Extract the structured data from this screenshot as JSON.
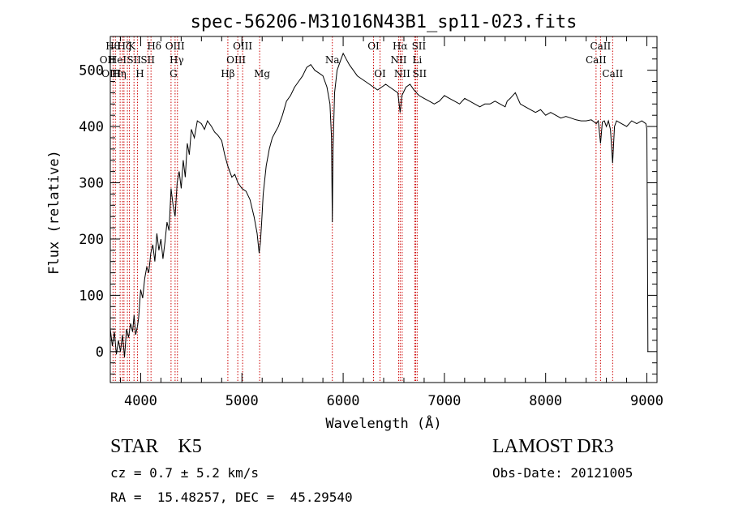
{
  "chart_data": {
    "type": "line",
    "title": "spec-56206-M31016N43B1_sp11-023.fits",
    "xlabel": "Wavelength (Å)",
    "ylabel": "Flux (relative)",
    "xlim": [
      3700,
      9100
    ],
    "ylim": [
      -55,
      560
    ],
    "xticks": [
      4000,
      5000,
      6000,
      7000,
      8000,
      9000
    ],
    "yticks": [
      0,
      100,
      200,
      300,
      400,
      500
    ],
    "x_minor_step": 200,
    "y_minor_step": 20,
    "line_color": "#000000",
    "marker_color": "#cc0000",
    "series": [
      {
        "name": "flux",
        "x": [
          3700,
          3720,
          3740,
          3760,
          3780,
          3800,
          3820,
          3840,
          3860,
          3880,
          3900,
          3920,
          3935,
          3950,
          3968,
          3980,
          4000,
          4020,
          4040,
          4060,
          4080,
          4100,
          4120,
          4140,
          4160,
          4180,
          4200,
          4220,
          4240,
          4260,
          4280,
          4300,
          4320,
          4340,
          4360,
          4380,
          4400,
          4420,
          4440,
          4460,
          4480,
          4500,
          4530,
          4560,
          4600,
          4630,
          4660,
          4700,
          4730,
          4760,
          4800,
          4830,
          4860,
          4900,
          4930,
          4960,
          5000,
          5040,
          5080,
          5120,
          5150,
          5170,
          5183,
          5195,
          5210,
          5240,
          5270,
          5300,
          5330,
          5360,
          5400,
          5440,
          5480,
          5520,
          5560,
          5600,
          5640,
          5680,
          5720,
          5760,
          5800,
          5840,
          5870,
          5885,
          5893,
          5900,
          5915,
          5940,
          5970,
          6000,
          6030,
          6060,
          6100,
          6140,
          6180,
          6220,
          6260,
          6300,
          6340,
          6380,
          6420,
          6460,
          6500,
          6540,
          6563,
          6580,
          6620,
          6660,
          6700,
          6750,
          6800,
          6850,
          6900,
          6950,
          7000,
          7050,
          7100,
          7150,
          7200,
          7250,
          7300,
          7350,
          7400,
          7450,
          7500,
          7550,
          7600,
          7620,
          7650,
          7700,
          7750,
          7800,
          7850,
          7900,
          7950,
          8000,
          8050,
          8100,
          8150,
          8200,
          8250,
          8300,
          8350,
          8400,
          8450,
          8480,
          8500,
          8520,
          8542,
          8560,
          8580,
          8600,
          8620,
          8640,
          8662,
          8680,
          8700,
          8750,
          8800,
          8850,
          8900,
          8950,
          8990,
          9000,
          9005,
          9010
        ],
        "y": [
          40,
          10,
          35,
          -5,
          20,
          0,
          30,
          -10,
          40,
          25,
          50,
          35,
          65,
          30,
          45,
          60,
          110,
          95,
          130,
          150,
          140,
          175,
          190,
          160,
          210,
          180,
          200,
          165,
          195,
          230,
          215,
          290,
          260,
          240,
          300,
          320,
          290,
          340,
          310,
          370,
          350,
          395,
          380,
          410,
          405,
          395,
          410,
          400,
          390,
          385,
          375,
          350,
          330,
          310,
          315,
          300,
          290,
          285,
          270,
          240,
          210,
          175,
          195,
          230,
          280,
          330,
          360,
          380,
          390,
          400,
          420,
          445,
          455,
          470,
          480,
          490,
          505,
          510,
          500,
          495,
          490,
          470,
          440,
          380,
          230,
          360,
          460,
          500,
          515,
          530,
          520,
          510,
          500,
          490,
          485,
          480,
          475,
          470,
          465,
          470,
          475,
          470,
          465,
          460,
          425,
          455,
          470,
          475,
          465,
          455,
          450,
          445,
          440,
          445,
          455,
          450,
          445,
          440,
          450,
          445,
          440,
          435,
          440,
          440,
          445,
          440,
          435,
          445,
          450,
          460,
          440,
          435,
          430,
          425,
          430,
          420,
          425,
          420,
          415,
          418,
          415,
          412,
          410,
          410,
          412,
          408,
          405,
          410,
          370,
          408,
          410,
          400,
          410,
          395,
          335,
          400,
          410,
          405,
          400,
          410,
          405,
          410,
          405,
          395,
          230,
          0
        ]
      }
    ],
    "line_markers": [
      {
        "x": 3727,
        "label": "OII",
        "row": 1,
        "dx": -7
      },
      {
        "x": 3750,
        "label": "OIII",
        "row": 2,
        "dx": -5
      },
      {
        "x": 3797,
        "label": "Hθ",
        "row": 0,
        "dx": -9
      },
      {
        "x": 3820,
        "label": "HeI",
        "row": 1,
        "dx": -6
      },
      {
        "x": 3835,
        "label": "Hη",
        "row": 2,
        "dx": -6
      },
      {
        "x": 3869,
        "label": "Hζ",
        "row": 0,
        "dx": -4
      },
      {
        "x": 3889,
        "label": "K",
        "row": 0,
        "dx": 3
      },
      {
        "x": 3934,
        "label": "SII",
        "row": 1,
        "dx": 0
      },
      {
        "x": 3968,
        "label": "H",
        "row": 2,
        "dx": 3
      },
      {
        "x": 4070,
        "label": "SII",
        "row": 1,
        "dx": 0
      },
      {
        "x": 4102,
        "label": "Hδ",
        "row": 0,
        "dx": 4
      },
      {
        "x": 4300,
        "label": "G",
        "row": 2,
        "dx": 3
      },
      {
        "x": 4340,
        "label": "Hγ",
        "row": 1,
        "dx": 2
      },
      {
        "x": 4363,
        "label": "OIII",
        "row": 0,
        "dx": -3
      },
      {
        "x": 4861,
        "label": "Hβ",
        "row": 2,
        "dx": 0
      },
      {
        "x": 4959,
        "label": "OIII",
        "row": 1,
        "dx": -2
      },
      {
        "x": 5007,
        "label": "OIII",
        "row": 0,
        "dx": 0
      },
      {
        "x": 5175,
        "label": "Mg",
        "row": 2,
        "dx": 3
      },
      {
        "x": 5893,
        "label": "Na",
        "row": 1,
        "dx": 0
      },
      {
        "x": 6300,
        "label": "OI",
        "row": 0,
        "dx": 0
      },
      {
        "x": 6364,
        "label": "OI",
        "row": 2,
        "dx": 0
      },
      {
        "x": 6548,
        "label": "NII",
        "row": 1,
        "dx": 0
      },
      {
        "x": 6563,
        "label": "Hα",
        "row": 0,
        "dx": 0
      },
      {
        "x": 6583,
        "label": "NII",
        "row": 2,
        "dx": 0
      },
      {
        "x": 6707,
        "label": "Li",
        "row": 1,
        "dx": 3
      },
      {
        "x": 6716,
        "label": "SII",
        "row": 0,
        "dx": 4
      },
      {
        "x": 6731,
        "label": "SII",
        "row": 2,
        "dx": 3
      },
      {
        "x": 8498,
        "label": "CaII",
        "row": 1,
        "dx": 0
      },
      {
        "x": 8542,
        "label": "CaII",
        "row": 0,
        "dx": 0
      },
      {
        "x": 8662,
        "label": "CaII",
        "row": 2,
        "dx": 0
      }
    ]
  },
  "info": {
    "class_line": "STAR    K5",
    "survey": "LAMOST DR3",
    "redshift": "cz = 0.7 ± 5.2 km/s",
    "obs_date": "Obs-Date: 20121005",
    "coords": "RA =  15.48257, DEC =  45.29540"
  }
}
